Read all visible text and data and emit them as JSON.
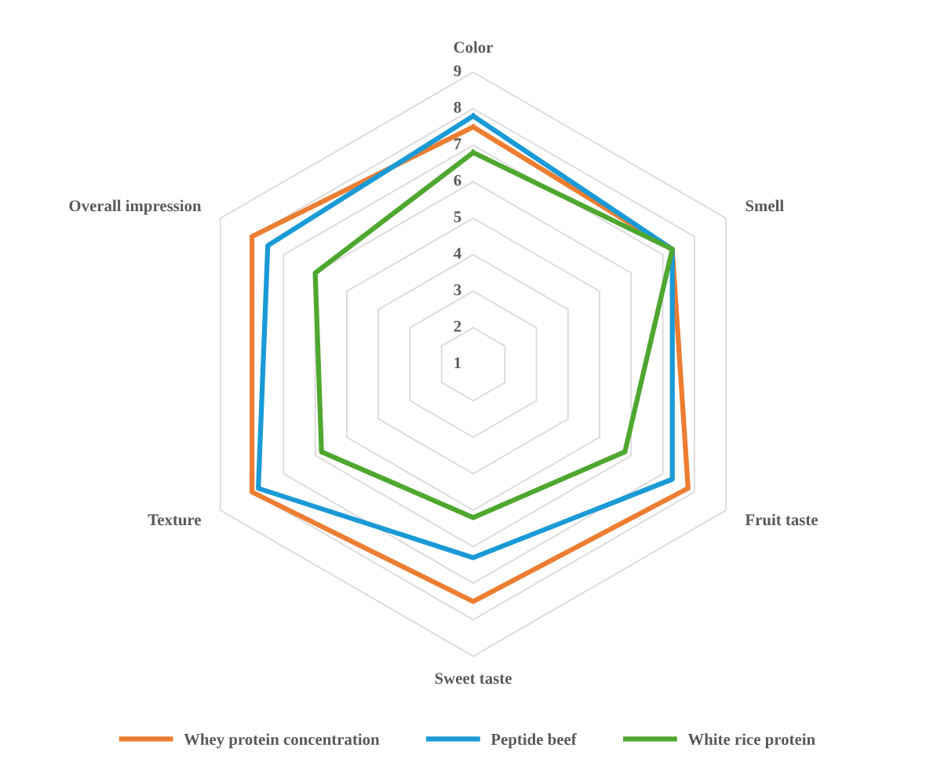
{
  "chart_data": {
    "type": "radar",
    "categories": [
      "Color",
      "Smell",
      "Fruit taste",
      "Sweet taste",
      "Texture",
      "Overall impression"
    ],
    "series": [
      {
        "name": "Whey protein concentration",
        "color": "#ed7d31",
        "values": [
          7.5,
          7.3,
          7.8,
          7.5,
          8.0,
          8.0
        ]
      },
      {
        "name": "Peptide beef",
        "color": "#1a9ad6",
        "values": [
          7.8,
          7.3,
          7.3,
          6.3,
          7.8,
          7.5
        ]
      },
      {
        "name": "White rice protein",
        "color": "#4ea72e",
        "values": [
          6.8,
          7.3,
          5.8,
          5.2,
          5.8,
          6.0
        ]
      }
    ],
    "ylim": [
      1,
      9
    ],
    "yticks": [
      1,
      2,
      3,
      4,
      5,
      6,
      7,
      8,
      9
    ],
    "grid": true,
    "legend": "bottom",
    "marker": "none",
    "line_style": "solid"
  }
}
